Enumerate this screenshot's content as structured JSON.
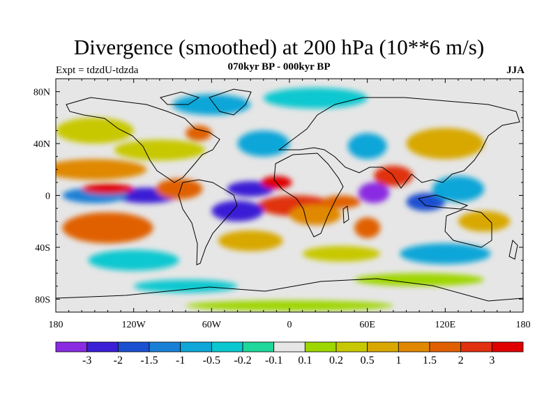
{
  "title": "Divergence (smoothed) at 200 hPa (10**6 m/s)",
  "experiment": "Expt = tdzdU-tdzda",
  "period": "070kyr BP - 000kyr BP",
  "season": "JJA",
  "axes": {
    "lat_labels": [
      "80N",
      "40N",
      "0",
      "40S",
      "80S"
    ],
    "lat_values": [
      80,
      40,
      0,
      -40,
      -80
    ],
    "lon_labels": [
      "180",
      "120W",
      "60W",
      "0",
      "60E",
      "120E",
      "180"
    ],
    "lon_values": [
      -180,
      -120,
      -60,
      0,
      60,
      120,
      180
    ],
    "lon_range": [
      -180,
      180
    ],
    "lat_range": [
      -90,
      90
    ]
  },
  "colorbar": {
    "colors": [
      "#8a2be2",
      "#3a1fd6",
      "#1a4fd0",
      "#1a80d6",
      "#0fa6d8",
      "#0bc8d0",
      "#1ed79a",
      "#e6e6e6",
      "#9ed600",
      "#c8c800",
      "#d8a800",
      "#e08800",
      "#e06000",
      "#e03010",
      "#e00000"
    ],
    "labels": [
      "-3",
      "-2",
      "-1.5",
      "-1",
      "-0.5",
      "-0.2",
      "-0.1",
      "0.1",
      "0.2",
      "0.5",
      "1",
      "1.5",
      "2",
      "3"
    ]
  },
  "field_blobs": [
    {
      "lon": -150,
      "lat": 20,
      "rx": 40,
      "ry": 8,
      "c": 11
    },
    {
      "lon": -110,
      "lat": 0,
      "rx": 25,
      "ry": 6,
      "c": 1
    },
    {
      "lon": -150,
      "lat": 0,
      "rx": 25,
      "ry": 6,
      "c": 3
    },
    {
      "lon": -140,
      "lat": -25,
      "rx": 35,
      "ry": 12,
      "c": 12
    },
    {
      "lon": -85,
      "lat": 5,
      "rx": 18,
      "ry": 8,
      "c": 12
    },
    {
      "lon": -30,
      "lat": 5,
      "rx": 18,
      "ry": 6,
      "c": 1
    },
    {
      "lon": 5,
      "lat": -8,
      "rx": 30,
      "ry": 8,
      "c": 13
    },
    {
      "lon": -40,
      "lat": -12,
      "rx": 20,
      "ry": 8,
      "c": 1
    },
    {
      "lon": 65,
      "lat": 2,
      "rx": 12,
      "ry": 8,
      "c": 0
    },
    {
      "lon": 80,
      "lat": 15,
      "rx": 15,
      "ry": 8,
      "c": 13
    },
    {
      "lon": 105,
      "lat": -5,
      "rx": 15,
      "ry": 7,
      "c": 2
    },
    {
      "lon": 130,
      "lat": 5,
      "rx": 20,
      "ry": 10,
      "c": 4
    },
    {
      "lon": 60,
      "lat": -25,
      "rx": 10,
      "ry": 8,
      "c": 12
    },
    {
      "lon": 20,
      "lat": -15,
      "rx": 20,
      "ry": 8,
      "c": 11
    },
    {
      "lon": -100,
      "lat": 35,
      "rx": 35,
      "ry": 8,
      "c": 9
    },
    {
      "lon": -70,
      "lat": 48,
      "rx": 10,
      "ry": 6,
      "c": 12
    },
    {
      "lon": -20,
      "lat": 40,
      "rx": 20,
      "ry": 10,
      "c": 4
    },
    {
      "lon": 60,
      "lat": 38,
      "rx": 15,
      "ry": 10,
      "c": 4
    },
    {
      "lon": 120,
      "lat": 40,
      "rx": 30,
      "ry": 12,
      "c": 10
    },
    {
      "lon": -150,
      "lat": 50,
      "rx": 30,
      "ry": 10,
      "c": 9
    },
    {
      "lon": 20,
      "lat": 75,
      "rx": 40,
      "ry": 8,
      "c": 5
    },
    {
      "lon": -60,
      "lat": 70,
      "rx": 30,
      "ry": 8,
      "c": 4
    },
    {
      "lon": -120,
      "lat": -50,
      "rx": 35,
      "ry": 8,
      "c": 5
    },
    {
      "lon": 40,
      "lat": -45,
      "rx": 30,
      "ry": 6,
      "c": 9
    },
    {
      "lon": 120,
      "lat": -45,
      "rx": 35,
      "ry": 8,
      "c": 4
    },
    {
      "lon": -30,
      "lat": -35,
      "rx": 25,
      "ry": 8,
      "c": 10
    },
    {
      "lon": 150,
      "lat": -20,
      "rx": 20,
      "ry": 8,
      "c": 10
    },
    {
      "lon": -140,
      "lat": 5,
      "rx": 20,
      "ry": 4,
      "c": 14
    },
    {
      "lon": -10,
      "lat": 10,
      "rx": 12,
      "ry": 5,
      "c": 14
    },
    {
      "lon": 40,
      "lat": -5,
      "rx": 15,
      "ry": 5,
      "c": 12
    },
    {
      "lon": 100,
      "lat": -65,
      "rx": 50,
      "ry": 5,
      "c": 8
    },
    {
      "lon": -80,
      "lat": -70,
      "rx": 40,
      "ry": 5,
      "c": 5
    },
    {
      "lon": 0,
      "lat": -85,
      "rx": 80,
      "ry": 4,
      "c": 8
    }
  ]
}
